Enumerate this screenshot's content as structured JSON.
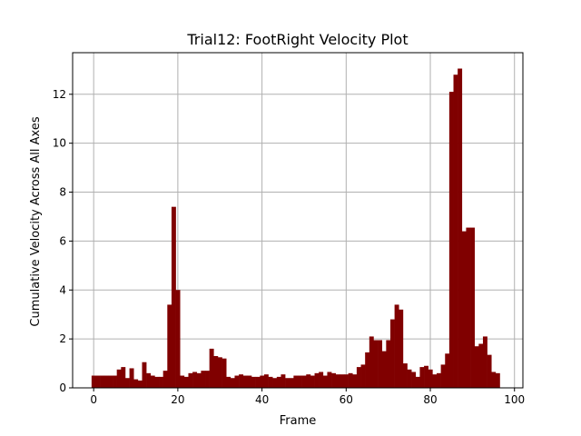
{
  "chart_data": {
    "type": "bar",
    "title": "Trial12: FootRight Velocity Plot",
    "xlabel": "Frame",
    "ylabel": "Cumulative Velocity Across All Axes",
    "xlim": [
      -5,
      102
    ],
    "ylim": [
      0,
      13.7
    ],
    "xticks": [
      0,
      20,
      40,
      60,
      80,
      100
    ],
    "yticks": [
      0,
      2,
      4,
      6,
      8,
      10,
      12
    ],
    "grid": true,
    "bar_color": "#800000",
    "x": [
      0,
      1,
      2,
      3,
      4,
      5,
      6,
      7,
      8,
      9,
      10,
      11,
      12,
      13,
      14,
      15,
      16,
      17,
      18,
      19,
      20,
      21,
      22,
      23,
      24,
      25,
      26,
      27,
      28,
      29,
      30,
      31,
      32,
      33,
      34,
      35,
      36,
      37,
      38,
      39,
      40,
      41,
      42,
      43,
      44,
      45,
      46,
      47,
      48,
      49,
      50,
      51,
      52,
      53,
      54,
      55,
      56,
      57,
      58,
      59,
      60,
      61,
      62,
      63,
      64,
      65,
      66,
      67,
      68,
      69,
      70,
      71,
      72,
      73,
      74,
      75,
      76,
      77,
      78,
      79,
      80,
      81,
      82,
      83,
      84,
      85,
      86,
      87,
      88,
      89,
      90,
      91,
      92,
      93,
      94,
      95,
      96,
      97
    ],
    "values": [
      0.5,
      0.5,
      0.5,
      0.5,
      0.5,
      0.5,
      0.75,
      0.85,
      0.4,
      0.8,
      0.35,
      0.3,
      1.05,
      0.6,
      0.5,
      0.45,
      0.45,
      0.7,
      3.4,
      7.4,
      4.0,
      0.5,
      0.45,
      0.6,
      0.65,
      0.6,
      0.7,
      0.7,
      1.6,
      1.3,
      1.25,
      1.2,
      0.45,
      0.4,
      0.5,
      0.55,
      0.5,
      0.5,
      0.45,
      0.45,
      0.5,
      0.55,
      0.45,
      0.4,
      0.45,
      0.55,
      0.4,
      0.4,
      0.5,
      0.5,
      0.5,
      0.55,
      0.5,
      0.6,
      0.65,
      0.5,
      0.65,
      0.6,
      0.55,
      0.55,
      0.55,
      0.6,
      0.55,
      0.85,
      0.95,
      1.45,
      2.1,
      1.95,
      1.95,
      1.5,
      1.95,
      2.8,
      3.4,
      3.2,
      1.0,
      0.75,
      0.65,
      0.45,
      0.85,
      0.9,
      0.75,
      0.55,
      0.6,
      0.95,
      1.4,
      12.1,
      12.8,
      13.05,
      6.4,
      6.55,
      6.55,
      1.7,
      1.8,
      2.1,
      1.35,
      0.65,
      0.6,
      0.0
    ]
  }
}
